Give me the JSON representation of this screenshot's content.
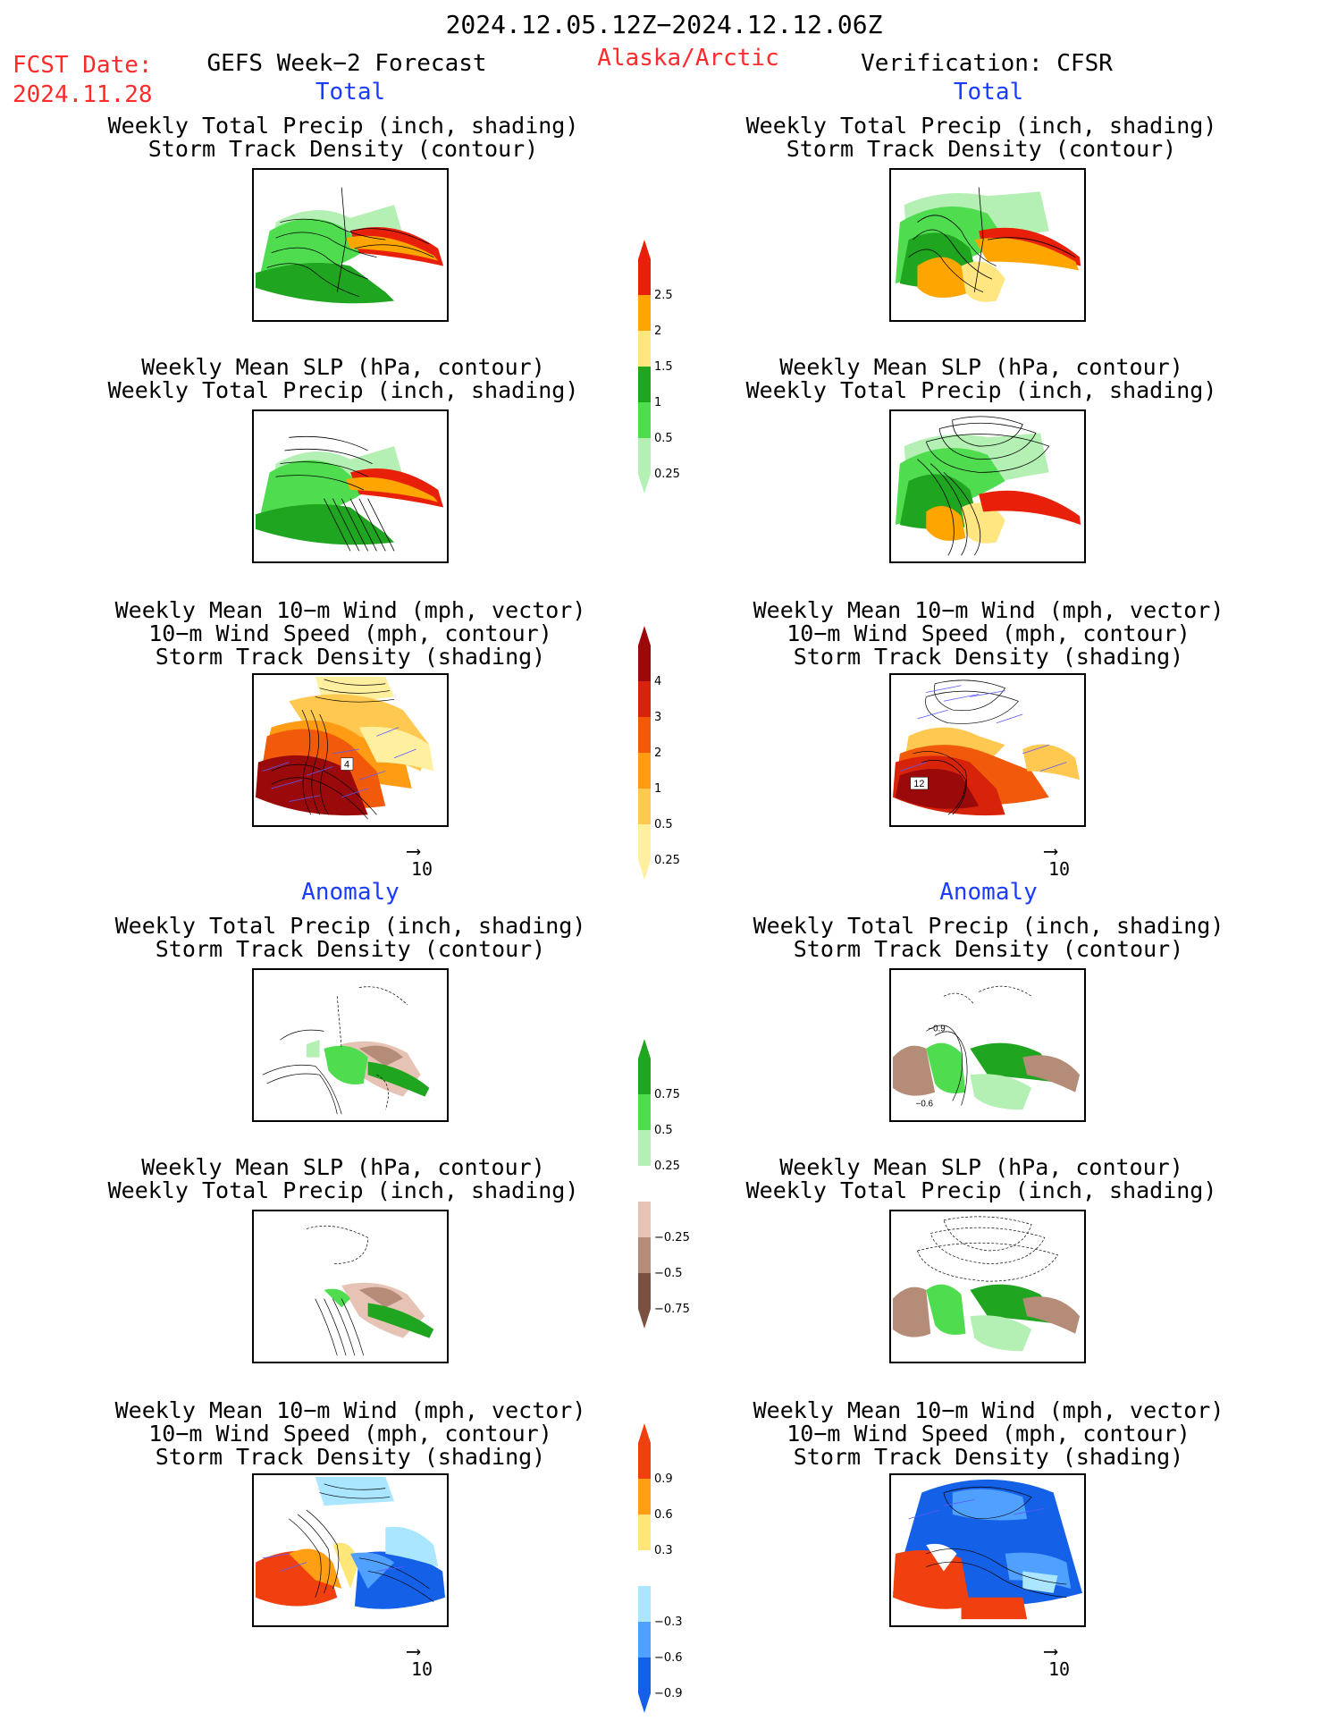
{
  "header": {
    "date_range": "2024.12.05.12Z−2024.12.12.06Z",
    "fcst_label": "FCST Date:",
    "fcst_date": "2024.11.28",
    "forecast_title": "GEFS Week−2 Forecast",
    "region": "Alaska/Arctic",
    "verification": "Verification: CFSR"
  },
  "sections": {
    "total": "Total",
    "anomaly": "Anomaly"
  },
  "panel_titles": {
    "precip_track": [
      "Weekly Total Precip (inch, shading)",
      "Storm Track Density (contour)"
    ],
    "slp_precip": [
      "Weekly Mean SLP (hPa, contour)",
      "Weekly Total Precip (inch, shading)"
    ],
    "wind_track": [
      "Weekly Mean 10−m Wind (mph, vector)",
      "10−m Wind Speed (mph, contour)",
      "Storm Track Density (shading)"
    ]
  },
  "vector_ref": "10",
  "colorbars": {
    "precip_total": {
      "labels": [
        "2.5",
        "2",
        "1.5",
        "1",
        "0.5",
        "0.25"
      ],
      "colors": [
        "#e8200a",
        "#ffa500",
        "#ffe680",
        "#1fa51f",
        "#4fdd4f",
        "#b4f0b4"
      ]
    },
    "track_total": {
      "labels": [
        "4",
        "3",
        "2",
        "1",
        "0.5",
        "0.25"
      ],
      "colors": [
        "#9b0a0a",
        "#d7230a",
        "#f05a0a",
        "#ff9c14",
        "#ffc850",
        "#fff0a0"
      ]
    },
    "precip_anom": {
      "labels": [
        "0.75",
        "0.5",
        "0.25",
        "−0.25",
        "−0.5",
        "−0.75"
      ],
      "colors": [
        "#1fa51f",
        "#4fdd4f",
        "#b4f0b4",
        "#ffffff",
        "#e6c3b4",
        "#b48c78",
        "#7a5040"
      ]
    },
    "track_anom": {
      "labels": [
        "0.9",
        "0.6",
        "0.3",
        "−0.3",
        "−0.6",
        "−0.9"
      ],
      "colors": [
        "#f04010",
        "#ffa014",
        "#ffe678",
        "#ffffff",
        "#aae6ff",
        "#50a0ff",
        "#1460e6"
      ]
    }
  },
  "panel_annotations": {
    "fcst_wind_total": "4",
    "obs_wind_total": "12",
    "obs_precip_anom_a": "−0.9",
    "obs_precip_anom_b": "−0.6"
  }
}
